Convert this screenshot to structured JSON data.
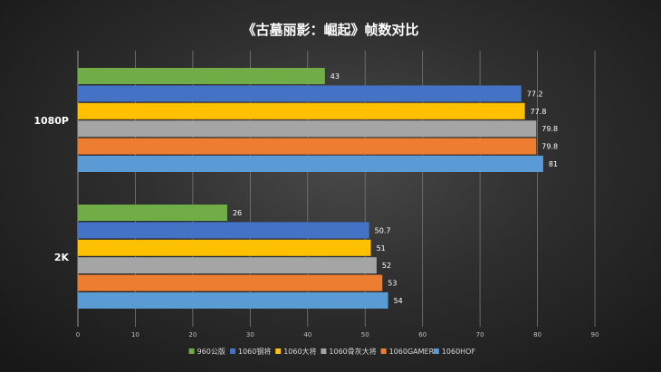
{
  "chart_data": {
    "type": "bar",
    "orientation": "horizontal",
    "title": "《古墓丽影：崛起》帧数对比",
    "categories": [
      "1080P",
      "2K"
    ],
    "series": [
      {
        "name": "960公版",
        "color": "#70ad47",
        "values": [
          43,
          26
        ]
      },
      {
        "name": "1060钢将",
        "color": "#4472c4",
        "values": [
          77.2,
          50.7
        ]
      },
      {
        "name": "1060大将",
        "color": "#ffc000",
        "values": [
          77.8,
          51
        ]
      },
      {
        "name": "1060骨灰大将",
        "color": "#a5a5a5",
        "values": [
          79.8,
          52
        ]
      },
      {
        "name": "1060GAMER",
        "color": "#ed7d31",
        "values": [
          79.8,
          53
        ]
      },
      {
        "name": "1060HOF",
        "color": "#5b9bd5",
        "values": [
          81,
          54
        ]
      }
    ],
    "data_labels": [
      [
        "43",
        "26"
      ],
      [
        "77.2",
        "50.7"
      ],
      [
        "77.8",
        "51"
      ],
      [
        "79.8",
        "52"
      ],
      [
        "79.8",
        "53"
      ],
      [
        "81",
        "54"
      ]
    ],
    "xlim": [
      0,
      90
    ],
    "xticks": [
      "0",
      "10",
      "20",
      "30",
      "40",
      "50",
      "60",
      "70",
      "80",
      "90"
    ],
    "grid": true,
    "legend_position": "bottom"
  }
}
